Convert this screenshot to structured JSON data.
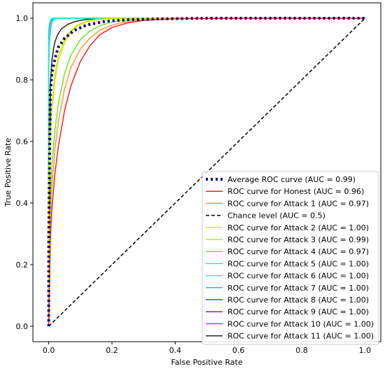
{
  "chart_data": {
    "type": "line",
    "title": "",
    "xlabel": "False Positive Rate",
    "ylabel": "True Positive Rate",
    "xlim": [
      -0.05,
      1.05
    ],
    "ylim": [
      -0.05,
      1.05
    ],
    "xticks": [
      "0.0",
      "0.2",
      "0.4",
      "0.6",
      "0.8",
      "1.0"
    ],
    "yticks": [
      "0.0",
      "0.2",
      "0.4",
      "0.6",
      "0.8",
      "1.0"
    ],
    "grid": false,
    "legend_position": "lower-right",
    "series": [
      {
        "name": "Average ROC curve (AUC = 0.99)",
        "color": "#000080",
        "style": "dotted-thick",
        "x": [
          0,
          0,
          0.005,
          0.01,
          0.02,
          0.03,
          0.05,
          0.08,
          0.12,
          0.18,
          0.25,
          0.35,
          0.5,
          0.7,
          1.0
        ],
        "y": [
          0,
          0.28,
          0.75,
          0.82,
          0.87,
          0.905,
          0.935,
          0.96,
          0.978,
          0.99,
          0.995,
          0.998,
          1.0,
          1.0,
          1.0
        ]
      },
      {
        "name": "ROC curve for Honest (AUC = 0.96)",
        "color": "#ff2020",
        "style": "solid",
        "x": [
          0,
          0.005,
          0.01,
          0.02,
          0.03,
          0.05,
          0.07,
          0.1,
          0.13,
          0.16,
          0.2,
          0.25,
          0.3,
          0.4,
          0.6,
          1.0
        ],
        "y": [
          0,
          0.28,
          0.38,
          0.5,
          0.58,
          0.7,
          0.78,
          0.86,
          0.91,
          0.945,
          0.97,
          0.985,
          0.993,
          0.998,
          1.0,
          1.0
        ]
      },
      {
        "name": "ROC curve for Attack 1 (AUC = 0.97)",
        "color": "#ff9933",
        "style": "solid",
        "x": [
          0,
          0.005,
          0.01,
          0.02,
          0.03,
          0.05,
          0.07,
          0.1,
          0.13,
          0.16,
          0.2,
          0.25,
          0.3,
          0.4,
          0.6,
          1.0
        ],
        "y": [
          0,
          0.35,
          0.45,
          0.58,
          0.66,
          0.77,
          0.84,
          0.9,
          0.935,
          0.96,
          0.978,
          0.99,
          0.995,
          0.999,
          1.0,
          1.0
        ]
      },
      {
        "name": "Chance level (AUC = 0.5)",
        "color": "#000000",
        "style": "dashed",
        "x": [
          0,
          1
        ],
        "y": [
          0,
          1
        ]
      },
      {
        "name": "ROC curve for Attack 2 (AUC = 1.00)",
        "color": "#e8e800",
        "style": "solid",
        "x": [
          0,
          0,
          0.005,
          0.01,
          0.02,
          0.03,
          0.05,
          0.07,
          0.09,
          0.12,
          0.15,
          0.2,
          0.3,
          0.5,
          1.0
        ],
        "y": [
          0,
          0.42,
          0.6,
          0.7,
          0.8,
          0.86,
          0.92,
          0.955,
          0.975,
          0.988,
          0.995,
          0.999,
          1.0,
          1.0,
          1.0
        ]
      },
      {
        "name": "ROC curve for Attack 3 (AUC = 0.99)",
        "color": "#b8f000",
        "style": "solid",
        "x": [
          0,
          0,
          0.005,
          0.01,
          0.02,
          0.03,
          0.05,
          0.07,
          0.09,
          0.12,
          0.15,
          0.2,
          0.3,
          0.5,
          1.0
        ],
        "y": [
          0,
          0.45,
          0.63,
          0.72,
          0.82,
          0.875,
          0.93,
          0.96,
          0.978,
          0.99,
          0.996,
          0.999,
          1.0,
          1.0,
          1.0
        ]
      },
      {
        "name": "ROC curve for Attack 4 (AUC = 0.97)",
        "color": "#66ee22",
        "style": "solid",
        "x": [
          0,
          0.005,
          0.01,
          0.02,
          0.03,
          0.05,
          0.07,
          0.1,
          0.13,
          0.16,
          0.2,
          0.25,
          0.3,
          0.4,
          0.6,
          1.0
        ],
        "y": [
          0,
          0.4,
          0.52,
          0.64,
          0.72,
          0.82,
          0.88,
          0.93,
          0.958,
          0.975,
          0.988,
          0.995,
          0.998,
          1.0,
          1.0,
          1.0
        ]
      },
      {
        "name": "ROC curve for Attack 5 (AUC = 1.00)",
        "color": "#22eebb",
        "style": "solid",
        "x": [
          0,
          0,
          0.003,
          0.006,
          0.01,
          0.015,
          0.02,
          0.03,
          0.05,
          1.0
        ],
        "y": [
          0,
          0.85,
          0.93,
          0.965,
          0.985,
          0.993,
          0.997,
          1.0,
          1.0,
          1.0
        ]
      },
      {
        "name": "ROC curve for Attack 6 (AUC = 1.00)",
        "color": "#22eeee",
        "style": "solid",
        "x": [
          0,
          0,
          0.003,
          0.006,
          0.01,
          0.015,
          0.02,
          0.03,
          1.0
        ],
        "y": [
          0,
          0.9,
          0.95,
          0.975,
          0.99,
          0.996,
          0.999,
          1.0,
          1.0
        ]
      },
      {
        "name": "ROC curve for Attack 7 (AUC = 1.00)",
        "color": "#22bbee",
        "style": "solid",
        "x": [
          0,
          0,
          0.002,
          0.005,
          0.01,
          0.015,
          0.02,
          1.0
        ],
        "y": [
          0,
          0.95,
          0.98,
          0.992,
          0.998,
          1.0,
          1.0,
          1.0
        ]
      },
      {
        "name": "ROC curve for Attack 8 (AUC = 1.00)",
        "color": "#2255ee",
        "style": "solid",
        "x": [
          0,
          0,
          0.003,
          0.006,
          0.01,
          0.015,
          0.02,
          0.03,
          1.0
        ],
        "y": [
          0,
          0.85,
          0.93,
          0.965,
          0.985,
          0.995,
          0.999,
          1.0,
          1.0
        ]
      },
      {
        "name": "ROC curve for Attack 9 (AUC = 1.00)",
        "color": "#7722ee",
        "style": "solid",
        "x": [
          0,
          0,
          0.003,
          0.006,
          0.01,
          0.015,
          0.02,
          0.03,
          1.0
        ],
        "y": [
          0,
          0.88,
          0.94,
          0.97,
          0.988,
          0.996,
          0.999,
          1.0,
          1.0
        ]
      },
      {
        "name": "ROC curve for Attack 10 (AUC = 1.00)",
        "color": "#ee22ee",
        "style": "solid",
        "x": [
          0,
          0,
          0.003,
          0.006,
          0.01,
          0.015,
          0.02,
          1.0
        ],
        "y": [
          0,
          0.92,
          0.96,
          0.98,
          0.993,
          0.998,
          1.0,
          1.0
        ]
      },
      {
        "name": "ROC curve for Attack 11 (AUC = 1.00)",
        "color": "#222222",
        "style": "solid",
        "x": [
          0,
          0.005,
          0.01,
          0.015,
          0.02,
          0.03,
          0.04,
          0.06,
          0.08,
          0.1,
          0.12,
          0.15,
          0.2,
          1.0
        ],
        "y": [
          0,
          0.78,
          0.86,
          0.9,
          0.925,
          0.95,
          0.965,
          0.98,
          0.988,
          0.993,
          0.996,
          0.999,
          1.0,
          1.0
        ]
      }
    ]
  }
}
